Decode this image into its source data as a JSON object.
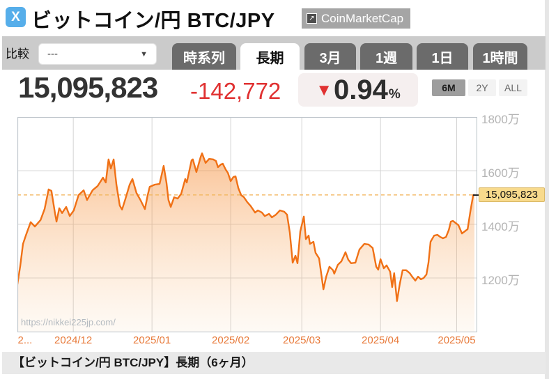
{
  "header": {
    "share_icon_text": "X",
    "title": "ビットコイン/円 BTC/JPY",
    "source_badge": {
      "label": "CoinMarketCap",
      "icon": "external-link-icon",
      "icon_glyph": "↗"
    }
  },
  "toolbar": {
    "compare_label": "比較",
    "compare_dropdown": {
      "value": "---",
      "arrow": "▼"
    },
    "tabs": [
      {
        "label": "時系列",
        "active": false
      },
      {
        "label": "長期",
        "active": true
      },
      {
        "label": "3月",
        "active": false
      },
      {
        "label": "1週",
        "active": false
      },
      {
        "label": "1日",
        "active": false
      },
      {
        "label": "1時間",
        "active": false
      }
    ]
  },
  "quote": {
    "price": "15,095,823",
    "change": "-142,772",
    "direction_arrow": "▼",
    "change_percent": "0.94",
    "percent_sign": "%",
    "range_buttons": [
      {
        "label": "6M",
        "active": true
      },
      {
        "label": "2Y",
        "active": false
      },
      {
        "label": "ALL",
        "active": false
      }
    ]
  },
  "chart": {
    "watermark": "https://nikkei225jp.com/",
    "last_price_label": "15,095,823"
  },
  "chart_data": {
    "type": "area",
    "title": "ビットコイン/円 BTC/JPY 長期（6ヶ月）",
    "x_unit": "days since 2024-11-09",
    "x_range": [
      0,
      180
    ],
    "x_data_end": 180,
    "grid": true,
    "y_axis": {
      "top_value": 18000000,
      "bottom_value": 9974000,
      "ticks": [
        {
          "label": "1800万",
          "value": 18000000
        },
        {
          "label": "1600万",
          "value": 16000000
        },
        {
          "label": "1400万",
          "value": 14000000
        },
        {
          "label": "1200万",
          "value": 12000000
        }
      ]
    },
    "x_ticks": [
      {
        "label": "2...",
        "day": 3,
        "gridline": false
      },
      {
        "label": "2024/12",
        "day": 22,
        "gridline": true
      },
      {
        "label": "2025/01",
        "day": 53,
        "gridline": true
      },
      {
        "label": "2025/02",
        "day": 84,
        "gridline": true
      },
      {
        "label": "2025/03",
        "day": 112,
        "gridline": true
      },
      {
        "label": "2025/04",
        "day": 143,
        "gridline": true
      },
      {
        "label": "2025/05",
        "day": 173,
        "gridline": true
      }
    ],
    "last_price": 15095823,
    "series": [
      [
        0,
        11770000
      ],
      [
        1.1,
        12440000
      ],
      [
        2.2,
        13270000
      ],
      [
        3.3,
        13580000
      ],
      [
        5.2,
        14080000
      ],
      [
        6.9,
        13920000
      ],
      [
        9.1,
        14160000
      ],
      [
        10.7,
        14570000
      ],
      [
        12.3,
        15300000
      ],
      [
        13.4,
        15250000
      ],
      [
        14.8,
        14420000
      ],
      [
        15.4,
        14100000
      ],
      [
        16.5,
        14600000
      ],
      [
        17.6,
        14420000
      ],
      [
        19.2,
        14650000
      ],
      [
        20.6,
        14310000
      ],
      [
        22.2,
        14520000
      ],
      [
        24.1,
        15090000
      ],
      [
        26.1,
        15270000
      ],
      [
        27.4,
        14910000
      ],
      [
        29.6,
        15270000
      ],
      [
        31.6,
        15430000
      ],
      [
        33.7,
        15740000
      ],
      [
        34.8,
        15560000
      ],
      [
        35.9,
        16420000
      ],
      [
        36.8,
        16080000
      ],
      [
        37.9,
        16420000
      ],
      [
        39,
        15480000
      ],
      [
        40.3,
        14700000
      ],
      [
        41.2,
        14550000
      ],
      [
        42.5,
        14940000
      ],
      [
        44.2,
        15480000
      ],
      [
        45.3,
        15690000
      ],
      [
        46.9,
        15170000
      ],
      [
        48.6,
        14880000
      ],
      [
        50.2,
        14570000
      ],
      [
        51.3,
        15090000
      ],
      [
        52.1,
        15400000
      ],
      [
        54.1,
        15480000
      ],
      [
        56,
        15510000
      ],
      [
        57.6,
        16180000
      ],
      [
        58.7,
        15560000
      ],
      [
        59.5,
        14910000
      ],
      [
        60.4,
        14650000
      ],
      [
        61.7,
        15010000
      ],
      [
        63.1,
        14960000
      ],
      [
        64.5,
        15140000
      ],
      [
        66.1,
        15690000
      ],
      [
        66.7,
        15560000
      ],
      [
        68.6,
        16390000
      ],
      [
        69.1,
        16420000
      ],
      [
        70.5,
        15950000
      ],
      [
        72.2,
        16520000
      ],
      [
        72.7,
        16650000
      ],
      [
        74.1,
        16290000
      ],
      [
        75.5,
        16440000
      ],
      [
        77.1,
        16420000
      ],
      [
        78.2,
        16360000
      ],
      [
        79,
        16130000
      ],
      [
        80.1,
        16230000
      ],
      [
        80.9,
        16260000
      ],
      [
        82,
        16050000
      ],
      [
        82.9,
        15920000
      ],
      [
        84,
        15610000
      ],
      [
        85.1,
        15770000
      ],
      [
        85.9,
        15790000
      ],
      [
        87,
        15350000
      ],
      [
        88.1,
        15090000
      ],
      [
        89.2,
        15010000
      ],
      [
        90.5,
        14830000
      ],
      [
        91.9,
        14680000
      ],
      [
        93.6,
        14440000
      ],
      [
        94.7,
        14520000
      ],
      [
        96.3,
        14440000
      ],
      [
        97.4,
        14310000
      ],
      [
        99.1,
        14390000
      ],
      [
        100.2,
        14260000
      ],
      [
        101.8,
        14360000
      ],
      [
        103.4,
        14520000
      ],
      [
        105.1,
        14470000
      ],
      [
        106.2,
        14360000
      ],
      [
        107.3,
        13690000
      ],
      [
        108.4,
        12570000
      ],
      [
        109.5,
        12830000
      ],
      [
        110.3,
        12550000
      ],
      [
        111.4,
        13740000
      ],
      [
        112.8,
        14290000
      ],
      [
        113.6,
        13450000
      ],
      [
        114.7,
        13580000
      ],
      [
        115.2,
        13270000
      ],
      [
        116.6,
        13350000
      ],
      [
        117.4,
        12940000
      ],
      [
        118.8,
        12730000
      ],
      [
        120.5,
        11580000
      ],
      [
        121.6,
        12050000
      ],
      [
        122.9,
        12420000
      ],
      [
        124.3,
        12290000
      ],
      [
        124.8,
        12160000
      ],
      [
        126.2,
        12490000
      ],
      [
        127.6,
        12620000
      ],
      [
        129.2,
        12960000
      ],
      [
        130.3,
        12680000
      ],
      [
        131.4,
        12550000
      ],
      [
        133.1,
        12570000
      ],
      [
        134.7,
        13060000
      ],
      [
        136.6,
        13270000
      ],
      [
        138.3,
        13250000
      ],
      [
        139.9,
        13120000
      ],
      [
        141.3,
        12420000
      ],
      [
        142.1,
        12310000
      ],
      [
        143,
        12700000
      ],
      [
        144.3,
        12360000
      ],
      [
        145.4,
        12470000
      ],
      [
        146.8,
        12230000
      ],
      [
        147.6,
        11660000
      ],
      [
        148.4,
        12180000
      ],
      [
        149.5,
        11140000
      ],
      [
        150.6,
        11790000
      ],
      [
        151.7,
        12290000
      ],
      [
        153.1,
        12290000
      ],
      [
        154.5,
        12180000
      ],
      [
        155.6,
        12030000
      ],
      [
        156.7,
        11900000
      ],
      [
        157.8,
        12050000
      ],
      [
        158.9,
        11950000
      ],
      [
        160,
        12000000
      ],
      [
        161.1,
        12130000
      ],
      [
        161.9,
        12570000
      ],
      [
        162.7,
        13350000
      ],
      [
        164.1,
        13580000
      ],
      [
        165.4,
        13610000
      ],
      [
        166.5,
        13530000
      ],
      [
        167.6,
        13480000
      ],
      [
        168.8,
        13530000
      ],
      [
        169.9,
        13790000
      ],
      [
        170.7,
        14100000
      ],
      [
        171.5,
        14130000
      ],
      [
        172.6,
        14050000
      ],
      [
        173.7,
        13970000
      ],
      [
        175.1,
        13660000
      ],
      [
        176.2,
        13740000
      ],
      [
        177.3,
        13820000
      ],
      [
        178.4,
        14490000
      ],
      [
        179.5,
        15090000
      ],
      [
        180,
        15095823
      ]
    ]
  },
  "footer": {
    "caption": "【ビットコイン/円 BTC/JPY】長期（6ヶ月）"
  },
  "colors": {
    "line_orange": "#f07116",
    "area_top": "#f5872e",
    "dashed_line": "#f2b55c",
    "tag_background": "#f8da8c",
    "negative_red": "#e03131",
    "share_blue": "#56aeea",
    "x_tick_orange": "#e87a3a",
    "y_label_gray": "#b4b4b4"
  }
}
